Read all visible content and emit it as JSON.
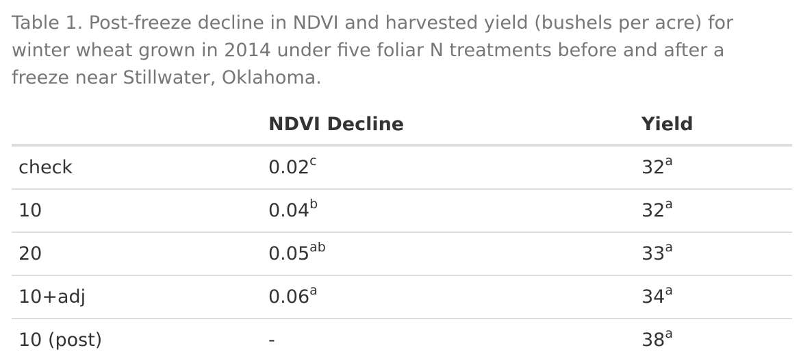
{
  "caption": "Table 1. Post-freeze decline in NDVI and harvested yield (bushels per acre) for winter wheat grown in 2014 under five foliar N treatments before and after a freeze near Stillwater, Oklahoma.",
  "table": {
    "headers": [
      "",
      "NDVI Decline",
      "Yield"
    ],
    "rows": [
      {
        "treatment": "check",
        "ndvi": "0.02",
        "ndvi_sup": "c",
        "yield": "32",
        "yield_sup": "a"
      },
      {
        "treatment": "10",
        "ndvi": "0.04",
        "ndvi_sup": "b",
        "yield": "32",
        "yield_sup": "a"
      },
      {
        "treatment": "20",
        "ndvi": "0.05",
        "ndvi_sup": "ab",
        "yield": "33",
        "yield_sup": "a"
      },
      {
        "treatment": "10+adj",
        "ndvi": "0.06",
        "ndvi_sup": "a",
        "yield": "34",
        "yield_sup": "a"
      },
      {
        "treatment": "10 (post)",
        "ndvi": "-",
        "ndvi_sup": "",
        "yield": "38",
        "yield_sup": "a"
      }
    ]
  }
}
